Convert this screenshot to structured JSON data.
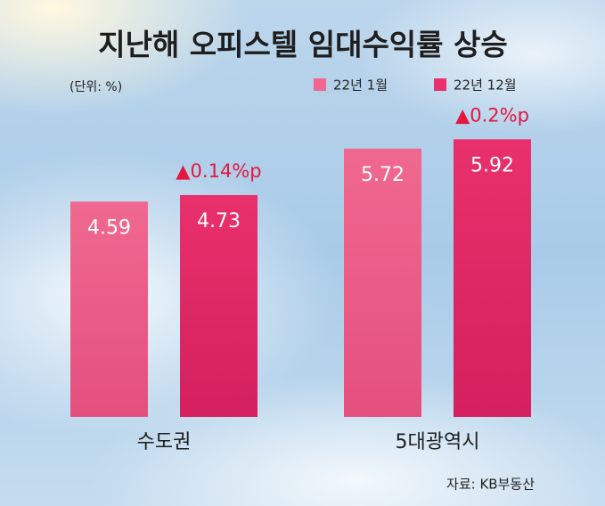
{
  "chart_data": {
    "type": "bar",
    "title": "지난해 오피스텔 임대수익률 상승",
    "unit_note": "(단위: %)",
    "categories": [
      "수도권",
      "5대광역시"
    ],
    "series": [
      {
        "name": "22년 1월",
        "color": "#f06890",
        "values": [
          4.59,
          5.72
        ]
      },
      {
        "name": "22년 12월",
        "color": "#e8306c",
        "values": [
          4.73,
          5.92
        ]
      }
    ],
    "annotations": [
      "▲0.14%p",
      "▲0.2%p"
    ],
    "source": "자료: KB부동산"
  }
}
